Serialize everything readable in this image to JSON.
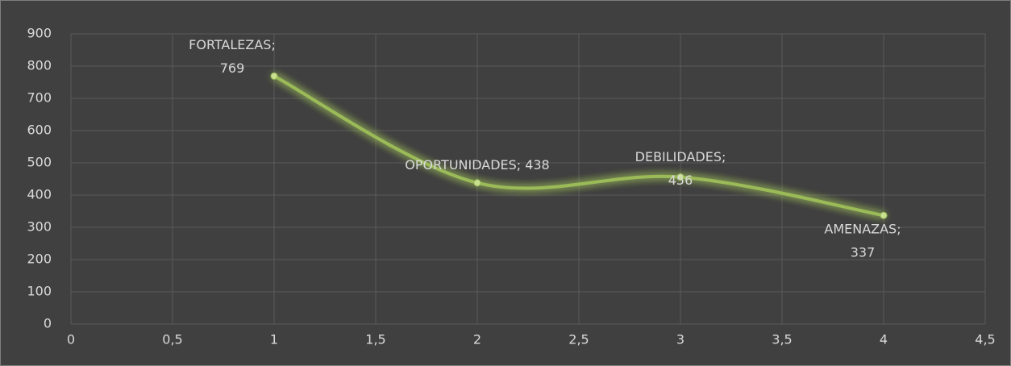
{
  "chart_data": {
    "type": "scatter",
    "x": [
      1,
      2,
      3,
      4
    ],
    "values": [
      769,
      438,
      456,
      337
    ],
    "point_labels": [
      "FORTALEZAS;",
      "OPORTUNIDADES;",
      "DEBILIDADES;",
      "AMENAZAS;"
    ],
    "color": "#9bbb59",
    "smooth": true,
    "grid": true,
    "xlim": [
      0,
      4.5
    ],
    "xticks": [
      0,
      {
        "value": 0.5,
        "label": "0,5"
      },
      1,
      {
        "value": 1.5,
        "label": "1,5"
      },
      2,
      {
        "value": 2.5,
        "label": "2,5"
      },
      3,
      {
        "value": 3.5,
        "label": "3,5"
      },
      4,
      {
        "value": 4.5,
        "label": "4,5"
      }
    ],
    "ylim": [
      0,
      900
    ],
    "yticks": [
      0,
      100,
      200,
      300,
      400,
      500,
      600,
      700,
      800,
      900
    ]
  }
}
